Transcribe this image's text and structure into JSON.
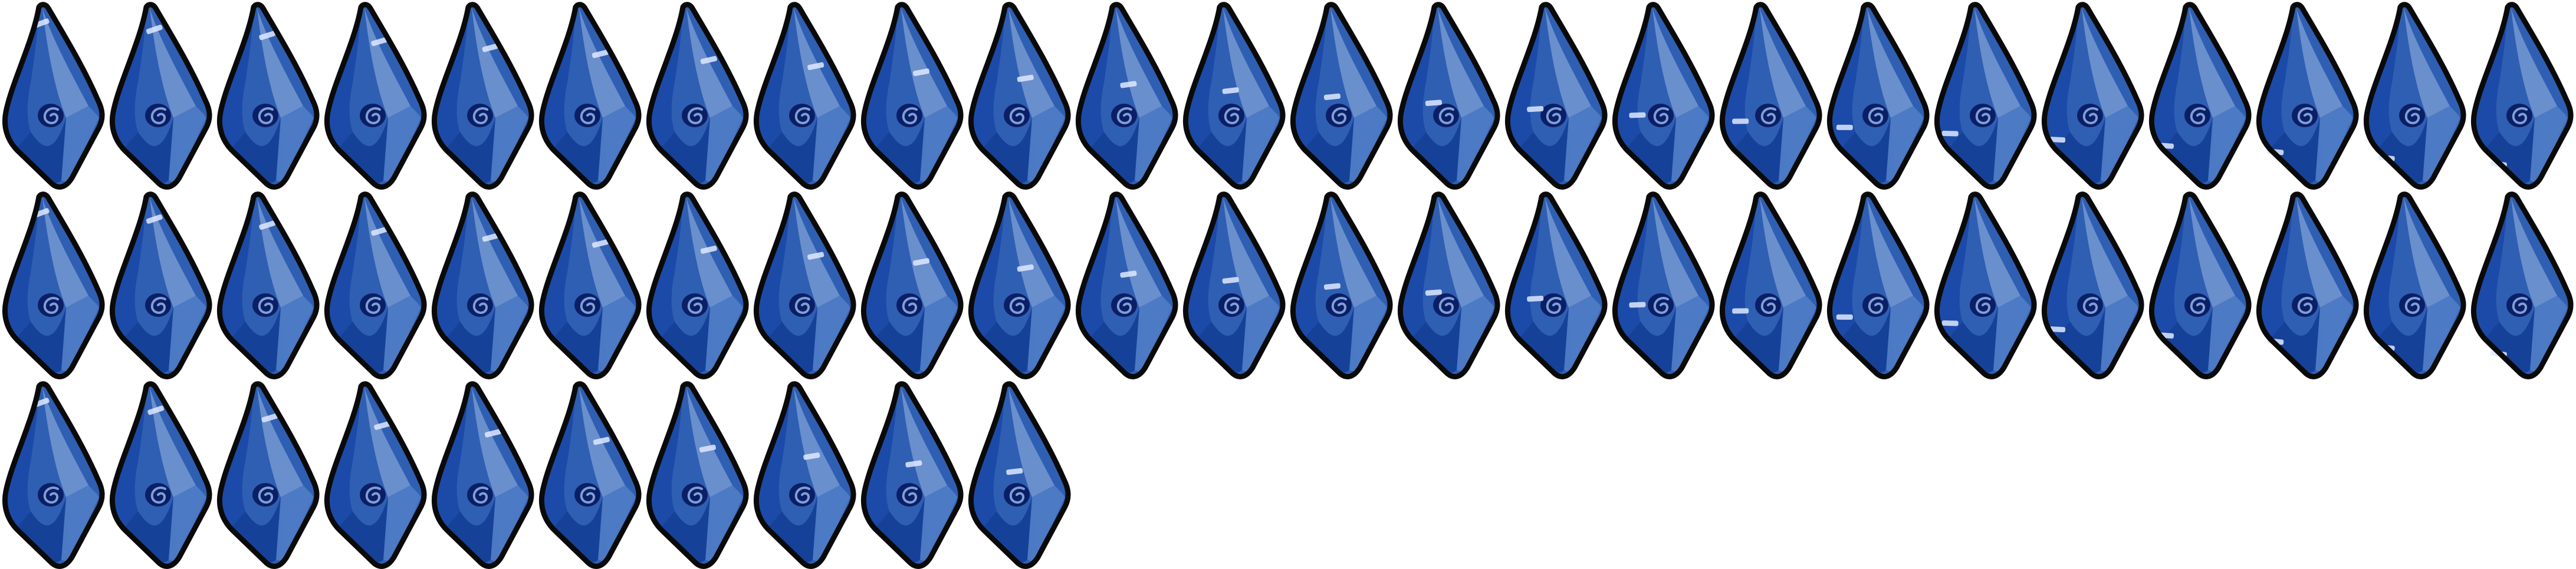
{
  "sprite_sheet": {
    "description_free": true,
    "frame_count": 58,
    "columns": 24,
    "rows": 3,
    "colors": {
      "outline": "#0a0a0a",
      "gem_base": "#2f5fb3",
      "gem_dark": "#1c4aa8",
      "gem_deep": "#123c93",
      "gem_light": "#7f9fd6",
      "gem_mid": "#4f7cc4",
      "spiral": "#0b1f66",
      "glint": "#dfe9ff"
    },
    "icon": "blue-crystal-shard-icon",
    "glint_progress": [
      0.0,
      0.04,
      0.08,
      0.12,
      0.16,
      0.2,
      0.24,
      0.28,
      0.32,
      0.36,
      0.4,
      0.44,
      0.48,
      0.52,
      0.56,
      0.6,
      0.64,
      0.68,
      0.72,
      0.76,
      0.8,
      0.84,
      0.88,
      0.92,
      0.0,
      0.04,
      0.08,
      0.12,
      0.16,
      0.2,
      0.24,
      0.28,
      0.32,
      0.36,
      0.4,
      0.44,
      0.48,
      0.52,
      0.56,
      0.6,
      0.64,
      0.68,
      0.72,
      0.76,
      0.8,
      0.84,
      0.88,
      0.92,
      0.0,
      0.05,
      0.1,
      0.15,
      0.2,
      0.25,
      0.3,
      0.35,
      0.4,
      0.45
    ]
  }
}
